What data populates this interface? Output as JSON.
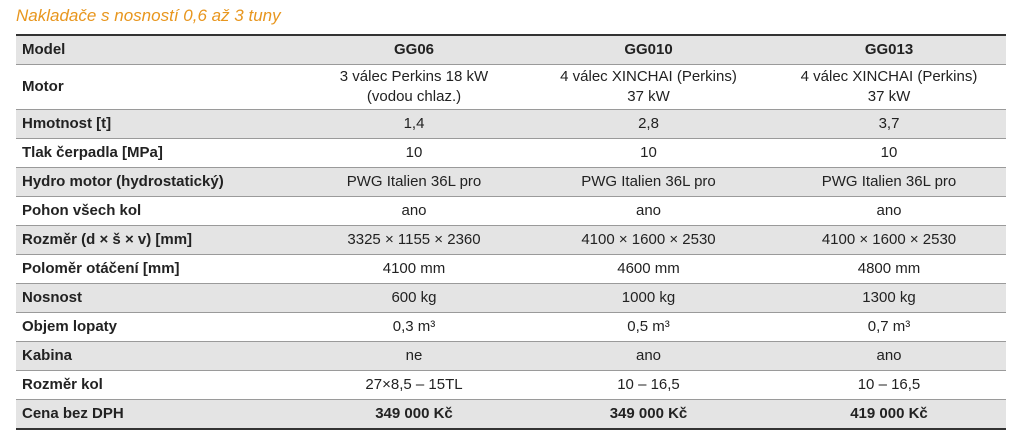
{
  "title": "Nakladače s nosností 0,6 až 3 tuny",
  "table": {
    "header": [
      "Model",
      "GG06",
      "GG010",
      "GG013"
    ],
    "rows": [
      [
        [
          "Motor"
        ],
        [
          "3 válec Perkins 18 kW",
          "(vodou chlaz.)"
        ],
        [
          "4 válec XINCHAI (Perkins)",
          "37 kW"
        ],
        [
          "4 válec XINCHAI (Perkins)",
          "37 kW"
        ]
      ],
      [
        [
          "Hmotnost [t]"
        ],
        [
          "1,4"
        ],
        [
          "2,8"
        ],
        [
          "3,7"
        ]
      ],
      [
        [
          "Tlak čerpadla [MPa]"
        ],
        [
          "10"
        ],
        [
          "10"
        ],
        [
          "10"
        ]
      ],
      [
        [
          "Hydro motor (hydrostatický)"
        ],
        [
          "PWG Italien 36L pro"
        ],
        [
          "PWG Italien 36L pro"
        ],
        [
          "PWG Italien 36L pro"
        ]
      ],
      [
        [
          "Pohon všech kol"
        ],
        [
          "ano"
        ],
        [
          "ano"
        ],
        [
          "ano"
        ]
      ],
      [
        [
          "Rozměr (d × š × v) [mm]"
        ],
        [
          "3325 × 1155 × 2360"
        ],
        [
          "4100 × 1600 × 2530"
        ],
        [
          "4100 × 1600 × 2530"
        ]
      ],
      [
        [
          "Poloměr otáčení [mm]"
        ],
        [
          "4100 mm"
        ],
        [
          "4600 mm"
        ],
        [
          "4800 mm"
        ]
      ],
      [
        [
          "Nosnost"
        ],
        [
          "600 kg"
        ],
        [
          "1000 kg"
        ],
        [
          "1300 kg"
        ]
      ],
      [
        [
          "Objem lopaty"
        ],
        [
          "0,3 m³"
        ],
        [
          "0,5 m³"
        ],
        [
          "0,7 m³"
        ]
      ],
      [
        [
          "Kabina"
        ],
        [
          "ne"
        ],
        [
          "ano"
        ],
        [
          "ano"
        ]
      ],
      [
        [
          "Rozměr kol"
        ],
        [
          "27×8,5 – 15TL"
        ],
        [
          "10 – 16,5"
        ],
        [
          "10 – 16,5"
        ]
      ],
      [
        [
          "Cena bez DPH"
        ],
        [
          "349 000 Kč"
        ],
        [
          "349 000 Kč"
        ],
        [
          "419 000 Kč"
        ]
      ]
    ]
  }
}
